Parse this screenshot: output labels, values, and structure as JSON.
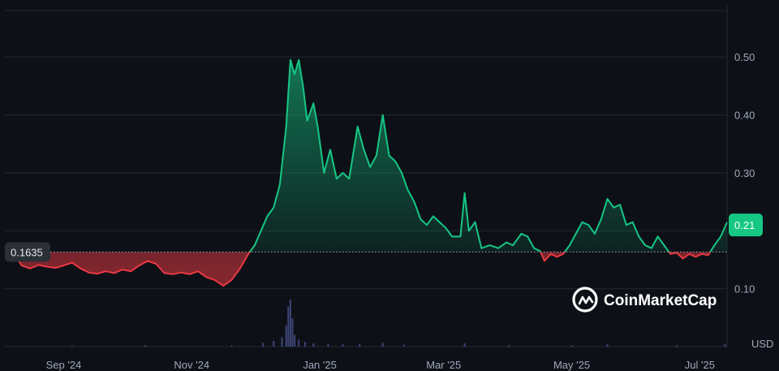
{
  "chart_data": {
    "type": "area",
    "y_unit": "USD",
    "ylim": [
      0.0,
      0.59
    ],
    "y_ticks": [
      {
        "value": 0.1,
        "label": "0.10"
      },
      {
        "value": 0.3,
        "label": "0.30"
      },
      {
        "value": 0.4,
        "label": "0.40"
      },
      {
        "value": 0.5,
        "label": "0.50"
      }
    ],
    "x_ticks": [
      "Sep '24",
      "Nov '24",
      "Jan '25",
      "Mar '25",
      "May '25",
      "Jul '25"
    ],
    "x_tick_dates": [
      "2024-09-01",
      "2024-11-01",
      "2025-01-01",
      "2025-03-01",
      "2025-05-01",
      "2025-07-01"
    ],
    "x_range": [
      "2024-08-04",
      "2025-07-14"
    ],
    "reference": {
      "value": 0.1635,
      "label": "0.1635"
    },
    "current": {
      "value": 0.21,
      "label": "0.21"
    },
    "colors": {
      "up": "#16c784",
      "down": "#ea3943",
      "volume": "#3d4578",
      "background": "#0d1117",
      "grid": "#222831",
      "badge_dark": "#2b2f36"
    },
    "grid": true,
    "series": [
      {
        "points": [
          [
            "2024-08-04",
            0.172
          ],
          [
            "2024-08-08",
            0.162
          ],
          [
            "2024-08-12",
            0.14
          ],
          [
            "2024-08-16",
            0.135
          ],
          [
            "2024-08-20",
            0.141
          ],
          [
            "2024-08-24",
            0.138
          ],
          [
            "2024-08-28",
            0.136
          ],
          [
            "2024-09-01",
            0.14
          ],
          [
            "2024-09-05",
            0.145
          ],
          [
            "2024-09-09",
            0.135
          ],
          [
            "2024-09-13",
            0.128
          ],
          [
            "2024-09-17",
            0.126
          ],
          [
            "2024-09-21",
            0.13
          ],
          [
            "2024-09-25",
            0.127
          ],
          [
            "2024-09-29",
            0.133
          ],
          [
            "2024-10-03",
            0.13
          ],
          [
            "2024-10-07",
            0.14
          ],
          [
            "2024-10-11",
            0.148
          ],
          [
            "2024-10-15",
            0.143
          ],
          [
            "2024-10-19",
            0.127
          ],
          [
            "2024-10-23",
            0.125
          ],
          [
            "2024-10-27",
            0.128
          ],
          [
            "2024-10-31",
            0.125
          ],
          [
            "2024-11-04",
            0.13
          ],
          [
            "2024-11-08",
            0.12
          ],
          [
            "2024-11-12",
            0.115
          ],
          [
            "2024-11-16",
            0.105
          ],
          [
            "2024-11-20",
            0.115
          ],
          [
            "2024-11-24",
            0.135
          ],
          [
            "2024-11-28",
            0.16
          ],
          [
            "2024-12-01",
            0.175
          ],
          [
            "2024-12-04",
            0.2
          ],
          [
            "2024-12-07",
            0.225
          ],
          [
            "2024-12-10",
            0.24
          ],
          [
            "2024-12-13",
            0.28
          ],
          [
            "2024-12-16",
            0.38
          ],
          [
            "2024-12-18",
            0.495
          ],
          [
            "2024-12-20",
            0.47
          ],
          [
            "2024-12-22",
            0.495
          ],
          [
            "2024-12-24",
            0.45
          ],
          [
            "2024-12-26",
            0.39
          ],
          [
            "2024-12-29",
            0.42
          ],
          [
            "2024-12-31",
            0.38
          ],
          [
            "2025-01-03",
            0.3
          ],
          [
            "2025-01-06",
            0.34
          ],
          [
            "2025-01-09",
            0.29
          ],
          [
            "2025-01-12",
            0.3
          ],
          [
            "2025-01-15",
            0.29
          ],
          [
            "2025-01-19",
            0.38
          ],
          [
            "2025-01-22",
            0.34
          ],
          [
            "2025-01-25",
            0.31
          ],
          [
            "2025-01-28",
            0.33
          ],
          [
            "2025-01-31",
            0.4
          ],
          [
            "2025-02-03",
            0.33
          ],
          [
            "2025-02-06",
            0.32
          ],
          [
            "2025-02-09",
            0.3
          ],
          [
            "2025-02-12",
            0.27
          ],
          [
            "2025-02-15",
            0.25
          ],
          [
            "2025-02-18",
            0.22
          ],
          [
            "2025-02-21",
            0.21
          ],
          [
            "2025-02-24",
            0.225
          ],
          [
            "2025-02-27",
            0.215
          ],
          [
            "2025-03-02",
            0.205
          ],
          [
            "2025-03-05",
            0.19
          ],
          [
            "2025-03-09",
            0.19
          ],
          [
            "2025-03-11",
            0.265
          ],
          [
            "2025-03-13",
            0.2
          ],
          [
            "2025-03-16",
            0.215
          ],
          [
            "2025-03-19",
            0.17
          ],
          [
            "2025-03-23",
            0.175
          ],
          [
            "2025-03-27",
            0.17
          ],
          [
            "2025-03-31",
            0.18
          ],
          [
            "2025-04-03",
            0.175
          ],
          [
            "2025-04-07",
            0.195
          ],
          [
            "2025-04-10",
            0.19
          ],
          [
            "2025-04-13",
            0.17
          ],
          [
            "2025-04-16",
            0.165
          ],
          [
            "2025-04-18",
            0.148
          ],
          [
            "2025-04-21",
            0.16
          ],
          [
            "2025-04-24",
            0.155
          ],
          [
            "2025-04-27",
            0.16
          ],
          [
            "2025-04-30",
            0.175
          ],
          [
            "2025-05-03",
            0.195
          ],
          [
            "2025-05-06",
            0.215
          ],
          [
            "2025-05-09",
            0.21
          ],
          [
            "2025-05-12",
            0.195
          ],
          [
            "2025-05-15",
            0.22
          ],
          [
            "2025-05-18",
            0.255
          ],
          [
            "2025-05-21",
            0.24
          ],
          [
            "2025-05-24",
            0.245
          ],
          [
            "2025-05-27",
            0.21
          ],
          [
            "2025-05-30",
            0.215
          ],
          [
            "2025-06-02",
            0.19
          ],
          [
            "2025-06-05",
            0.175
          ],
          [
            "2025-06-08",
            0.17
          ],
          [
            "2025-06-11",
            0.19
          ],
          [
            "2025-06-14",
            0.175
          ],
          [
            "2025-06-17",
            0.16
          ],
          [
            "2025-06-20",
            0.162
          ],
          [
            "2025-06-23",
            0.152
          ],
          [
            "2025-06-26",
            0.16
          ],
          [
            "2025-06-29",
            0.155
          ],
          [
            "2025-07-02",
            0.16
          ],
          [
            "2025-07-05",
            0.158
          ],
          [
            "2025-07-08",
            0.175
          ],
          [
            "2025-07-11",
            0.19
          ],
          [
            "2025-07-14",
            0.215
          ]
        ]
      }
    ],
    "volume": [
      [
        "2024-09-05",
        0.02
      ],
      [
        "2024-10-10",
        0.03
      ],
      [
        "2024-11-20",
        0.03
      ],
      [
        "2024-12-05",
        0.08
      ],
      [
        "2024-12-10",
        0.12
      ],
      [
        "2024-12-14",
        0.2
      ],
      [
        "2024-12-16",
        0.45
      ],
      [
        "2024-12-17",
        0.85
      ],
      [
        "2024-12-18",
        1.0
      ],
      [
        "2024-12-19",
        0.6
      ],
      [
        "2024-12-20",
        0.25
      ],
      [
        "2024-12-22",
        0.15
      ],
      [
        "2024-12-25",
        0.1
      ],
      [
        "2024-12-29",
        0.07
      ],
      [
        "2025-01-05",
        0.06
      ],
      [
        "2025-01-12",
        0.05
      ],
      [
        "2025-01-20",
        0.06
      ],
      [
        "2025-01-31",
        0.08
      ],
      [
        "2025-02-10",
        0.04
      ],
      [
        "2025-03-11",
        0.07
      ],
      [
        "2025-04-01",
        0.03
      ],
      [
        "2025-05-01",
        0.03
      ],
      [
        "2025-05-18",
        0.05
      ],
      [
        "2025-06-20",
        0.03
      ],
      [
        "2025-07-13",
        0.05
      ]
    ]
  },
  "watermark": {
    "brand": "CoinMarketCap",
    "icon": "coinmarketcap-logo-icon"
  }
}
